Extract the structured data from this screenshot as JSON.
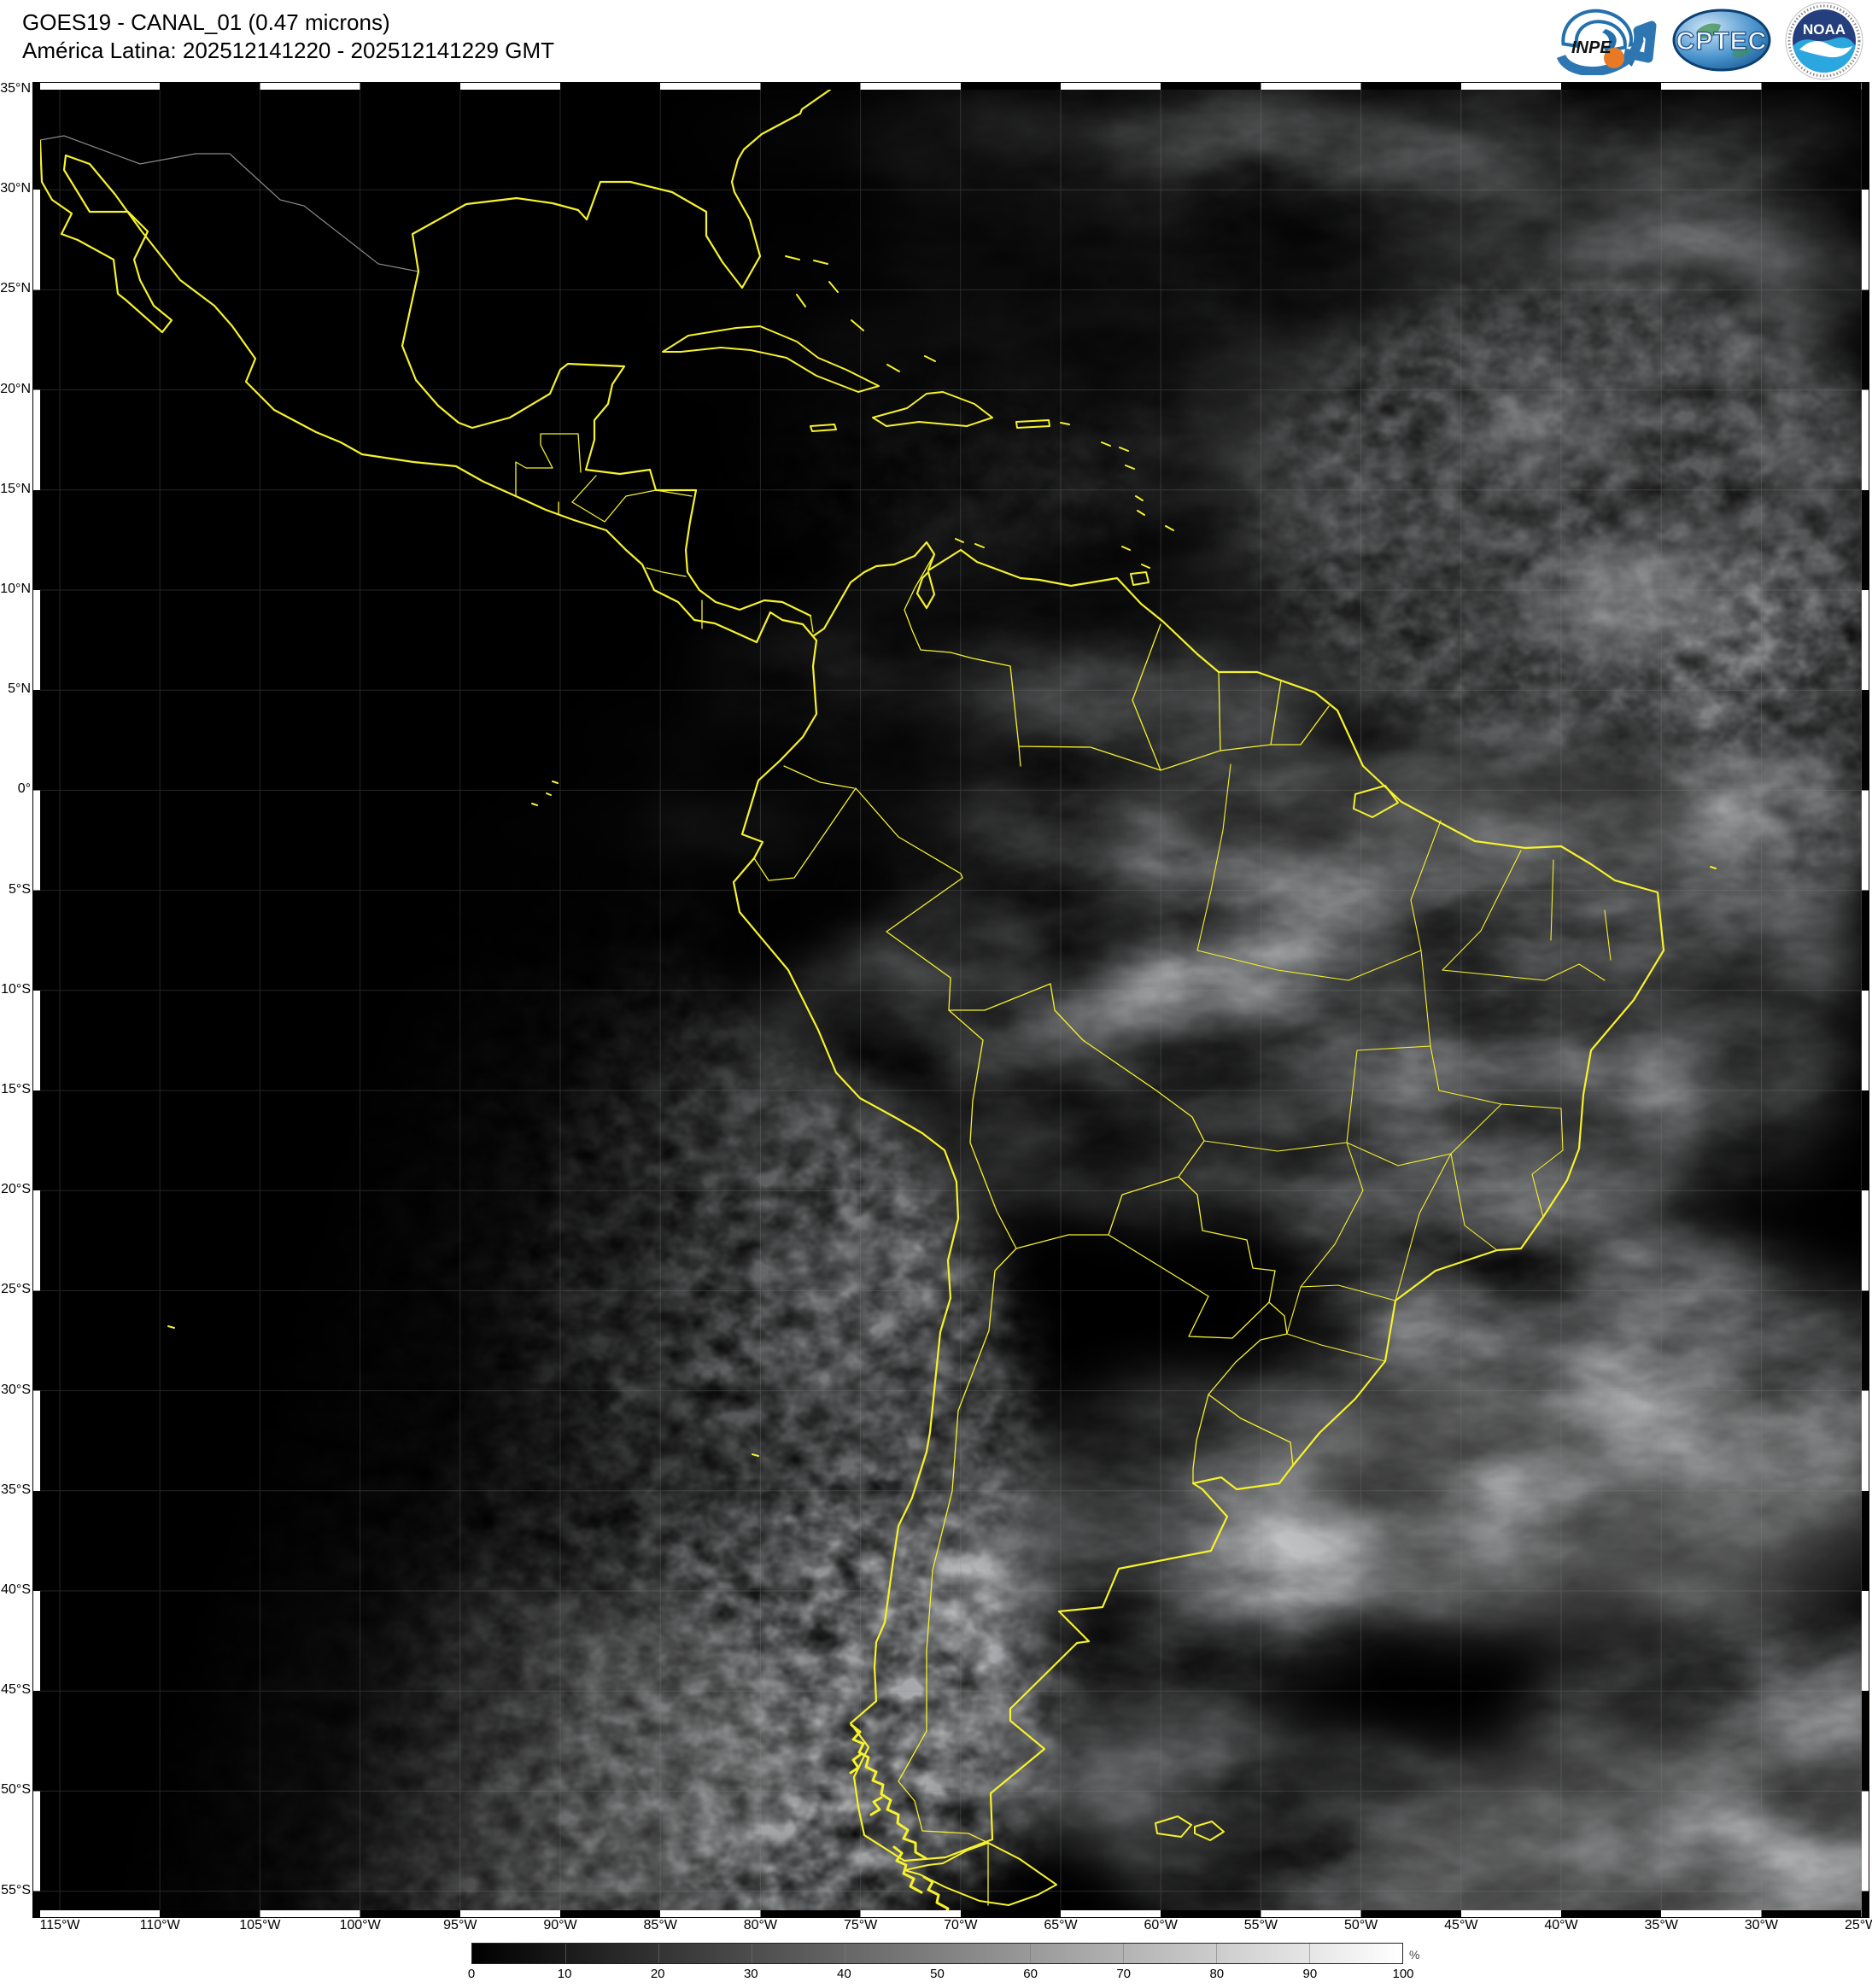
{
  "header": {
    "title_line1": "GOES19 - CANAL_01 (0.47 microns)",
    "title_line2": "América Latina: 202512141220 - 202512141229 GMT"
  },
  "logos": [
    {
      "name": "INPE"
    },
    {
      "name": "CPTEC"
    },
    {
      "name": "NOAA"
    }
  ],
  "map": {
    "lat_labels": [
      "35°N",
      "30°N",
      "25°N",
      "20°N",
      "15°N",
      "10°N",
      "5°N",
      "0°",
      "5°S",
      "10°S",
      "15°S",
      "20°S",
      "25°S",
      "30°S",
      "35°S",
      "40°S",
      "45°S",
      "50°S",
      "55°S"
    ],
    "lon_labels": [
      "115°W",
      "110°W",
      "105°W",
      "100°W",
      "95°W",
      "90°W",
      "85°W",
      "80°W",
      "75°W",
      "70°W",
      "65°W",
      "60°W",
      "55°W",
      "50°W",
      "45°W",
      "40°W",
      "35°W",
      "30°W",
      "25°W"
    ],
    "colors": {
      "coastline": "#f6f22b",
      "foreign_border": "#9a9a9a",
      "grid": "#8a8a8a",
      "ocean": "#000000",
      "frame_white": "#ffffff",
      "frame_black": "#000000"
    }
  },
  "colorbar": {
    "ticks": [
      "0",
      "10",
      "20",
      "30",
      "40",
      "50",
      "60",
      "70",
      "80",
      "90",
      "100"
    ],
    "unit": "%",
    "min_color": "#000000",
    "max_color": "#ffffff"
  }
}
